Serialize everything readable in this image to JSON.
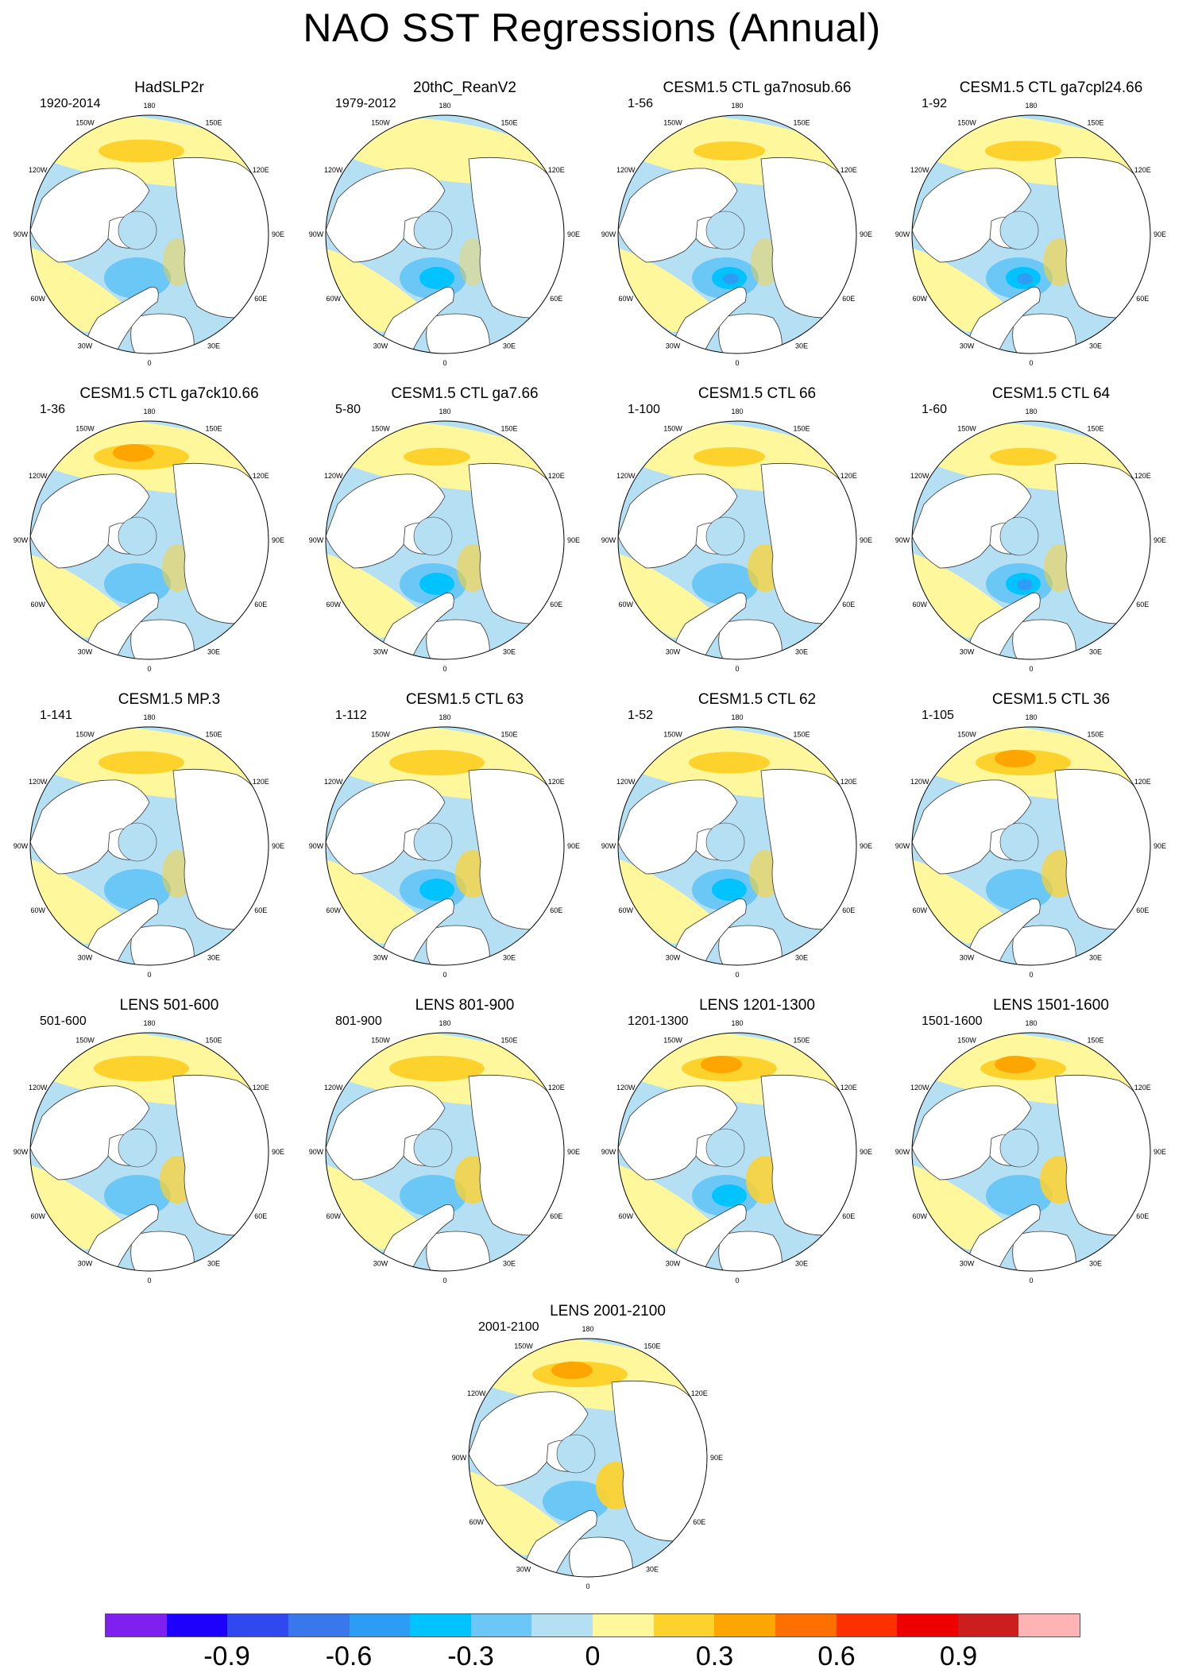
{
  "title": "NAO SST Regressions (Annual)",
  "longitude_labels": [
    "180",
    "150E",
    "120E",
    "90E",
    "60E",
    "30E",
    "0",
    "30W",
    "60W",
    "90W",
    "120W",
    "150W"
  ],
  "panels": [
    {
      "name": "HadSLP2r",
      "period": "1920-2014"
    },
    {
      "name": "20thC_ReanV2",
      "period": "1979-2012"
    },
    {
      "name": "CESM1.5 CTL ga7nosub.66",
      "period": "1-56"
    },
    {
      "name": "CESM1.5 CTL ga7cpl24.66",
      "period": "1-92"
    },
    {
      "name": "CESM1.5 CTL ga7ck10.66",
      "period": "1-36"
    },
    {
      "name": "CESM1.5 CTL ga7.66",
      "period": "5-80"
    },
    {
      "name": "CESM1.5 CTL 66",
      "period": "1-100"
    },
    {
      "name": "CESM1.5 CTL 64",
      "period": "1-60"
    },
    {
      "name": "CESM1.5 MP.3",
      "period": "1-141"
    },
    {
      "name": "CESM1.5 CTL 63",
      "period": "1-112"
    },
    {
      "name": "CESM1.5 CTL 62",
      "period": "1-52"
    },
    {
      "name": "CESM1.5 CTL 36",
      "period": "1-105"
    },
    {
      "name": "LENS 501-600",
      "period": "501-600"
    },
    {
      "name": "LENS 801-900",
      "period": "801-900"
    },
    {
      "name": "LENS 1201-1300",
      "period": "1201-1300"
    },
    {
      "name": "LENS 1501-1600",
      "period": "1501-1600"
    },
    {
      "name": "LENS 2001-2100",
      "period": "2001-2100"
    }
  ],
  "colorbar": {
    "colors": [
      "#7f1ff0",
      "#1e00ff",
      "#2f48f0",
      "#3877ec",
      "#2d9cf4",
      "#00c3ff",
      "#6ac7f6",
      "#b5dff3",
      "#fff79c",
      "#fed22d",
      "#ffa500",
      "#ff7000",
      "#ff3000",
      "#ee0000",
      "#cc1e1e",
      "#ffb3b3"
    ],
    "tick_labels": [
      "-0.9",
      "-0.6",
      "-0.3",
      "0",
      "0.3",
      "0.6",
      "0.9"
    ]
  }
}
